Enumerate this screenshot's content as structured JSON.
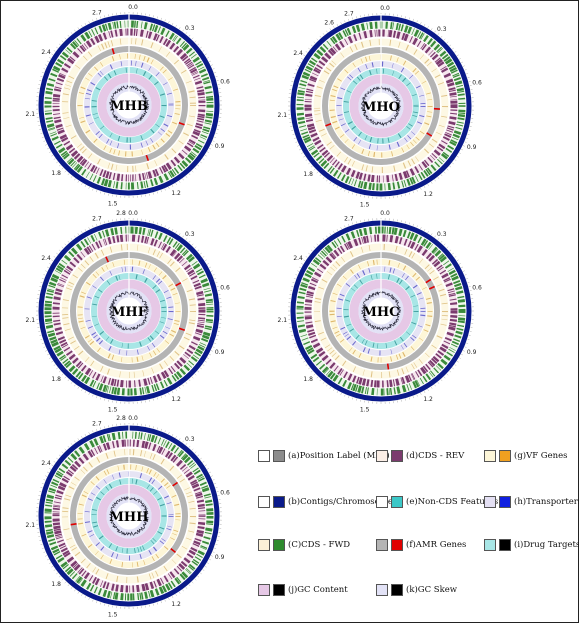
{
  "plots": [
    {
      "name": "MHB",
      "ticks": [
        "0.0",
        "0.3",
        "0.6",
        "0.9",
        "1.2",
        "1.5",
        "1.8",
        "2.1",
        "2.4",
        "2.7"
      ]
    },
    {
      "name": "MHO",
      "ticks": [
        "0.0",
        "0.3",
        "0.6",
        "0.9",
        "1.2",
        "1.5",
        "1.8",
        "2.1",
        "2.4",
        "2.6",
        "2.7"
      ]
    },
    {
      "name": "MHF",
      "ticks": [
        "0.0",
        "2.8",
        "0.3",
        "0.6",
        "0.9",
        "1.2",
        "1.5",
        "1.8",
        "2.1",
        "2.4",
        "2.7"
      ]
    },
    {
      "name": "MHC",
      "ticks": [
        "0.0",
        "0.3",
        "0.6",
        "0.9",
        "1.2",
        "1.5",
        "1.8",
        "2.1",
        "2.4",
        "2.7"
      ]
    },
    {
      "name": "MHH",
      "ticks": [
        "0.0",
        "2.8",
        "0.3",
        "0.6",
        "0.9",
        "1.2",
        "1.5",
        "1.8",
        "2.1",
        "2.4",
        "2.7"
      ]
    }
  ],
  "legend": {
    "a": {
      "label": "(a)Position Label (Mbp)",
      "colors": [
        "#ffffff",
        "#8c8c8c"
      ]
    },
    "d": {
      "label": "(d)CDS - REV",
      "colors": [
        "#fbeee6",
        "#7b3b6e"
      ]
    },
    "g": {
      "label": "(g)VF Genes",
      "colors": [
        "#fdf6d8",
        "#f0a020"
      ]
    },
    "b": {
      "label": "(b)Contigs/Chromosomes",
      "colors": [
        "#ffffff",
        "#0a1a8a"
      ]
    },
    "e": {
      "label": "(e)Non-CDS Features",
      "colors": [
        "#ffffff",
        "#3cc8c8"
      ]
    },
    "h": {
      "label": "(h)Transporters",
      "colors": [
        "#e4e0f4",
        "#1020e0"
      ]
    },
    "c": {
      "label": "(C)CDS - FWD",
      "colors": [
        "#fbf0d8",
        "#2e8b2e"
      ]
    },
    "f": {
      "label": "(f)AMR Genes",
      "colors": [
        "#b4b4b4",
        "#e00000"
      ]
    },
    "i": {
      "label": "(i)Drug Targets",
      "colors": [
        "#a8e6e6",
        "#000000"
      ]
    },
    "j": {
      "label": "(j)GC Content",
      "colors": [
        "#e6c8e6",
        "#000000"
      ]
    },
    "k": {
      "label": "(k)GC Skew",
      "colors": [
        "#e2e2f6",
        "#000000"
      ]
    }
  },
  "colors": {
    "contig": "#0a1a8a",
    "cds_fwd": "#3a8a3a",
    "cds_rev": "#7b3b6e",
    "non_cds_band": "#fdf8e4",
    "amr_band": "#b4b4b4",
    "vf_band": "#fdf6d8",
    "transporter_band": "#e6e4f4",
    "drug_band": "#a8e6e6",
    "gc_band": "#e6c8e6",
    "skew_band": "#e2e2f6"
  }
}
